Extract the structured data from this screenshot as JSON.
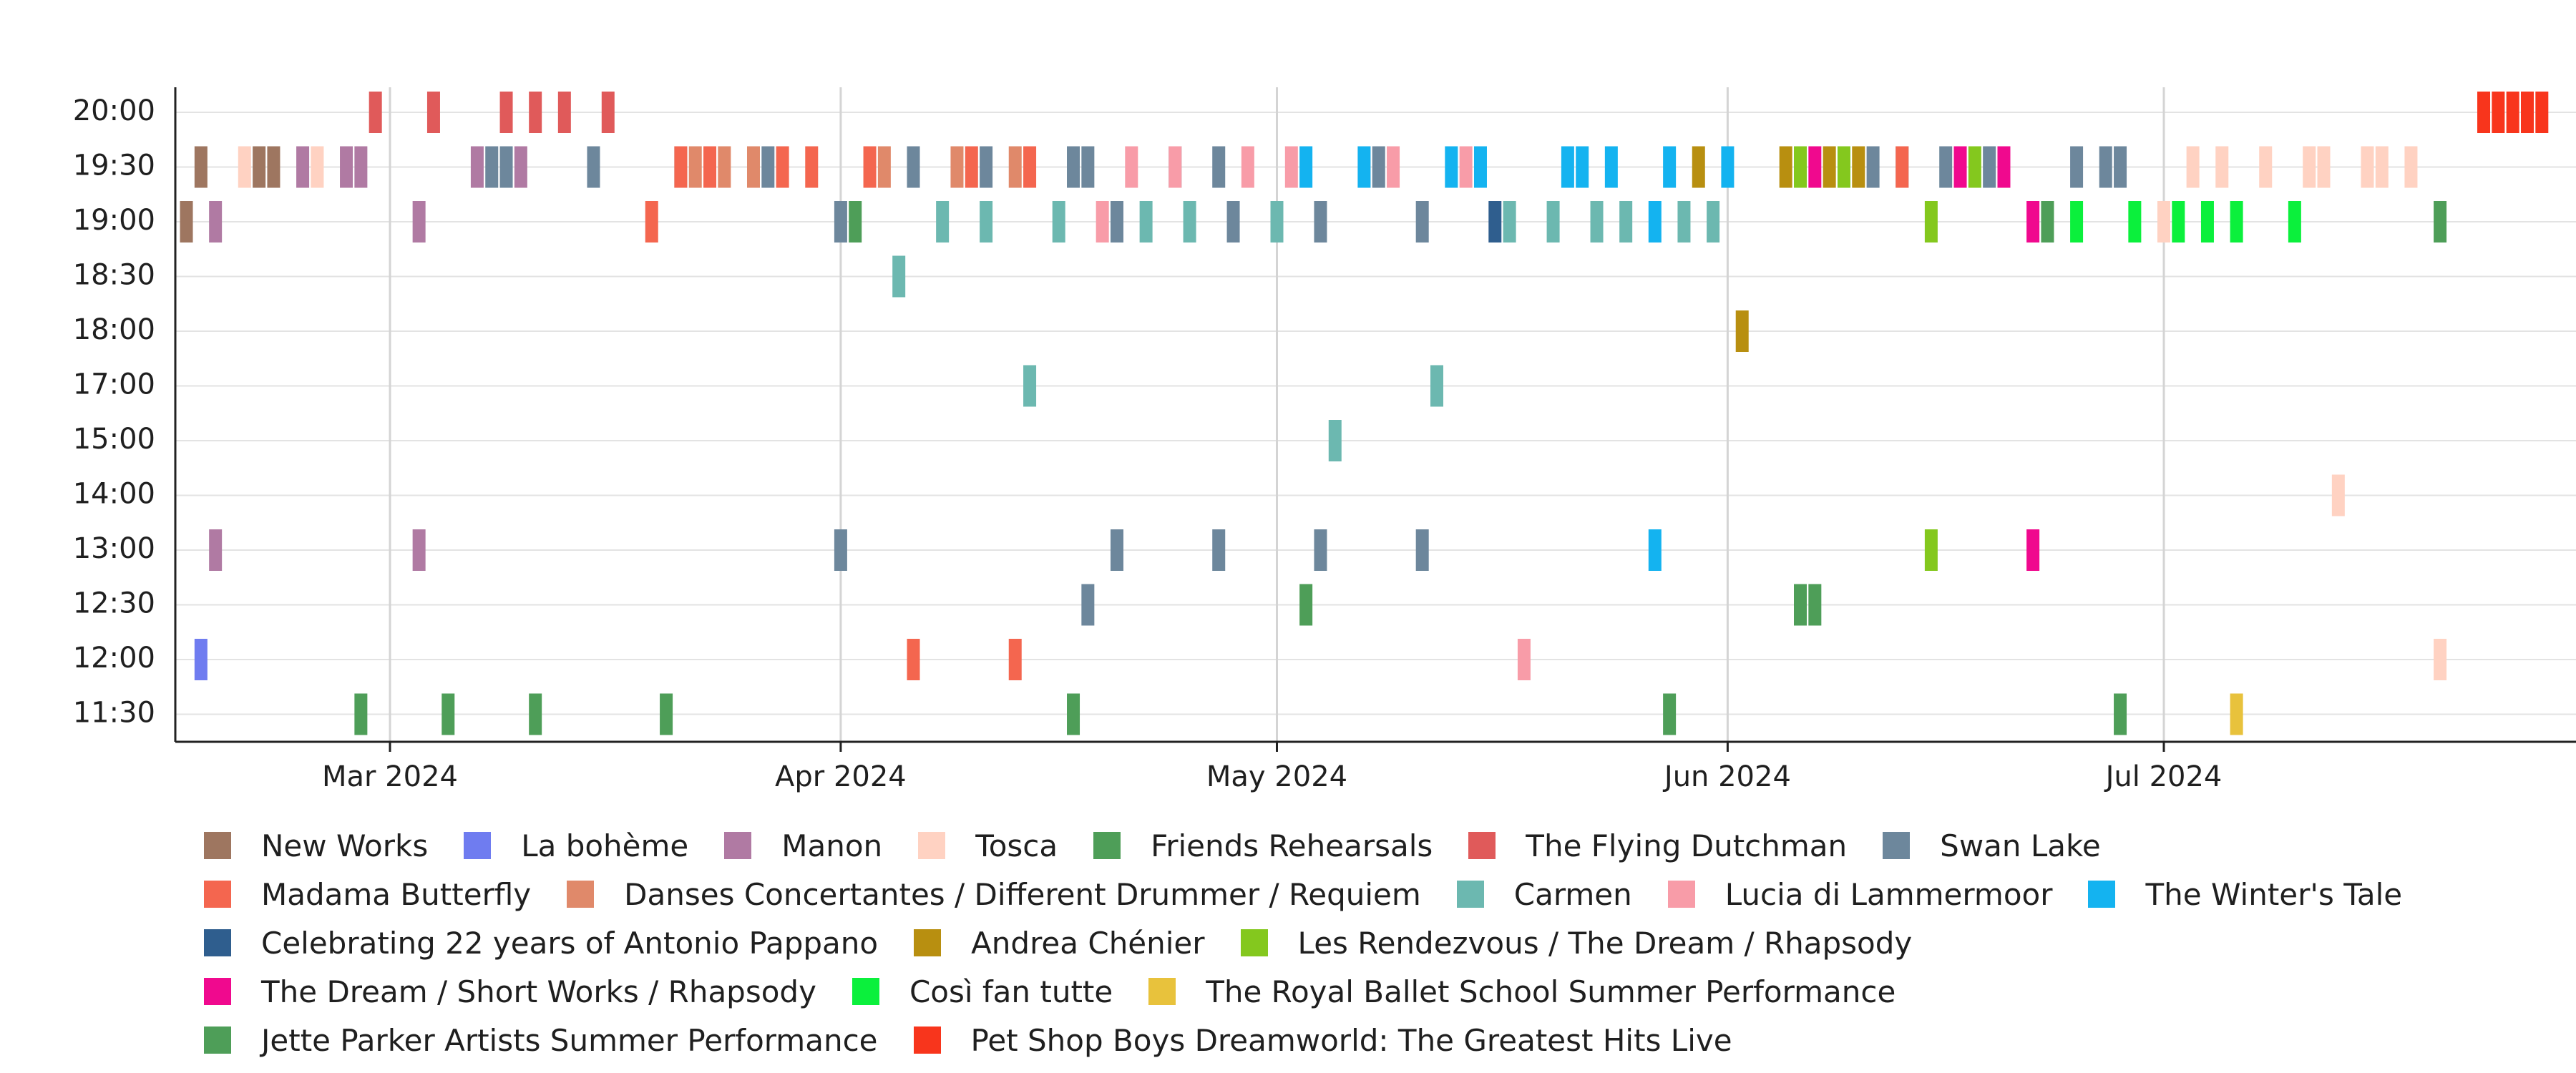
{
  "chart_data": {
    "type": "scatter",
    "marker": "vertical-bar",
    "xlabel": "",
    "ylabel": "",
    "x_range": [
      "2024-02-16",
      "2024-07-27"
    ],
    "x_ticks": [
      {
        "date": "2024-03-01",
        "label": "Mar 2024"
      },
      {
        "date": "2024-04-01",
        "label": "Apr 2024"
      },
      {
        "date": "2024-05-01",
        "label": "May 2024"
      },
      {
        "date": "2024-06-01",
        "label": "Jun 2024"
      },
      {
        "date": "2024-07-01",
        "label": "Jul 2024"
      }
    ],
    "y_categories": [
      "20:00",
      "19:30",
      "19:00",
      "18:30",
      "18:00",
      "17:00",
      "15:00",
      "14:00",
      "13:00",
      "12:30",
      "12:00",
      "11:30"
    ],
    "grid": true,
    "legend_position": "bottom",
    "series": [
      {
        "name": "New Works",
        "color": "#9e7660",
        "points": [
          [
            "2024-02-16",
            "19:00"
          ],
          [
            "2024-02-17",
            "19:30"
          ],
          [
            "2024-02-21",
            "19:30"
          ],
          [
            "2024-02-22",
            "19:30"
          ]
        ]
      },
      {
        "name": "La bohème",
        "color": "#6f7cf0",
        "points": [
          [
            "2024-02-17",
            "12:00"
          ]
        ]
      },
      {
        "name": "Manon",
        "color": "#b07aa3",
        "points": [
          [
            "2024-02-18",
            "19:00"
          ],
          [
            "2024-02-18",
            "13:00"
          ],
          [
            "2024-02-24",
            "19:30"
          ],
          [
            "2024-02-27",
            "19:30"
          ],
          [
            "2024-02-28",
            "19:30"
          ],
          [
            "2024-03-03",
            "19:00"
          ],
          [
            "2024-03-03",
            "13:00"
          ],
          [
            "2024-03-07",
            "19:30"
          ],
          [
            "2024-03-10",
            "19:30"
          ]
        ]
      },
      {
        "name": "Tosca",
        "color": "#ffd2c2",
        "points": [
          [
            "2024-02-20",
            "19:30"
          ],
          [
            "2024-02-25",
            "19:30"
          ],
          [
            "2024-07-03",
            "19:30"
          ],
          [
            "2024-07-05",
            "19:30"
          ],
          [
            "2024-07-08",
            "19:30"
          ],
          [
            "2024-07-11",
            "19:30"
          ],
          [
            "2024-07-12",
            "19:30"
          ],
          [
            "2024-07-13",
            "14:00"
          ],
          [
            "2024-07-15",
            "19:30"
          ],
          [
            "2024-07-16",
            "19:30"
          ],
          [
            "2024-07-18",
            "19:30"
          ],
          [
            "2024-07-20",
            "12:00"
          ],
          [
            "2024-07-01",
            "19:00"
          ]
        ]
      },
      {
        "name": "Friends Rehearsals",
        "color": "#4e9e58",
        "points": [
          [
            "2024-02-28",
            "11:30"
          ],
          [
            "2024-03-05",
            "11:30"
          ],
          [
            "2024-03-11",
            "11:30"
          ],
          [
            "2024-03-20",
            "11:30"
          ],
          [
            "2024-04-17",
            "11:30"
          ],
          [
            "2024-05-03",
            "12:30"
          ],
          [
            "2024-05-28",
            "11:30"
          ],
          [
            "2024-06-06",
            "12:30"
          ],
          [
            "2024-06-07",
            "12:30"
          ],
          [
            "2024-06-28",
            "11:30"
          ],
          [
            "2024-04-02",
            "19:00"
          ],
          [
            "2024-06-23",
            "19:00"
          ],
          [
            "2024-07-20",
            "19:00"
          ]
        ]
      },
      {
        "name": "The Flying Dutchman",
        "color": "#e05a5a",
        "points": [
          [
            "2024-02-29",
            "20:00"
          ],
          [
            "2024-03-04",
            "20:00"
          ],
          [
            "2024-03-09",
            "20:00"
          ],
          [
            "2024-03-11",
            "20:00"
          ],
          [
            "2024-03-13",
            "20:00"
          ],
          [
            "2024-03-16",
            "20:00"
          ]
        ]
      },
      {
        "name": "Swan Lake",
        "color": "#6d879c",
        "points": [
          [
            "2024-03-08",
            "19:30"
          ],
          [
            "2024-03-09",
            "19:30"
          ],
          [
            "2024-03-15",
            "19:30"
          ],
          [
            "2024-03-21",
            "19:30"
          ],
          [
            "2024-03-27",
            "19:30"
          ],
          [
            "2024-04-01",
            "19:00"
          ],
          [
            "2024-04-01",
            "13:00"
          ],
          [
            "2024-04-06",
            "19:30"
          ],
          [
            "2024-04-11",
            "19:30"
          ],
          [
            "2024-04-17",
            "19:30"
          ],
          [
            "2024-04-18",
            "19:30"
          ],
          [
            "2024-04-18",
            "12:30"
          ],
          [
            "2024-04-20",
            "19:00"
          ],
          [
            "2024-04-20",
            "13:00"
          ],
          [
            "2024-04-24",
            "19:30"
          ],
          [
            "2024-04-27",
            "19:30"
          ],
          [
            "2024-04-27",
            "13:00"
          ],
          [
            "2024-04-28",
            "19:00"
          ],
          [
            "2024-05-04",
            "19:00"
          ],
          [
            "2024-05-04",
            "13:00"
          ],
          [
            "2024-05-08",
            "19:30"
          ],
          [
            "2024-05-11",
            "19:00"
          ],
          [
            "2024-05-11",
            "13:00"
          ],
          [
            "2024-06-11",
            "19:30"
          ],
          [
            "2024-06-13",
            "19:30"
          ],
          [
            "2024-06-16",
            "19:30"
          ],
          [
            "2024-06-19",
            "19:30"
          ],
          [
            "2024-06-25",
            "19:30"
          ],
          [
            "2024-06-27",
            "19:30"
          ],
          [
            "2024-06-28",
            "19:30"
          ]
        ]
      },
      {
        "name": "Madama Butterfly",
        "color": "#f4664f",
        "points": [
          [
            "2024-03-19",
            "19:00"
          ],
          [
            "2024-03-21",
            "19:30"
          ],
          [
            "2024-03-23",
            "19:30"
          ],
          [
            "2024-03-28",
            "19:30"
          ],
          [
            "2024-03-30",
            "19:30"
          ],
          [
            "2024-04-03",
            "19:30"
          ],
          [
            "2024-04-06",
            "12:00"
          ],
          [
            "2024-04-10",
            "19:30"
          ],
          [
            "2024-04-13",
            "12:00"
          ],
          [
            "2024-04-14",
            "19:30"
          ],
          [
            "2024-06-13",
            "19:30"
          ]
        ]
      },
      {
        "name": "Danses Concertantes / Different Drummer / Requiem",
        "color": "#e0896a",
        "points": [
          [
            "2024-03-22",
            "19:30"
          ],
          [
            "2024-03-24",
            "19:30"
          ],
          [
            "2024-03-26",
            "19:30"
          ],
          [
            "2024-04-04",
            "19:30"
          ],
          [
            "2024-04-09",
            "19:30"
          ],
          [
            "2024-04-13",
            "19:30"
          ]
        ]
      },
      {
        "name": "Carmen",
        "color": "#6cb8b0",
        "points": [
          [
            "2024-04-05",
            "18:30"
          ],
          [
            "2024-04-08",
            "19:00"
          ],
          [
            "2024-04-11",
            "19:00"
          ],
          [
            "2024-04-14",
            "17:00"
          ],
          [
            "2024-04-16",
            "19:00"
          ],
          [
            "2024-04-22",
            "19:00"
          ],
          [
            "2024-04-25",
            "19:00"
          ],
          [
            "2024-05-01",
            "19:00"
          ],
          [
            "2024-05-05",
            "15:00"
          ],
          [
            "2024-05-12",
            "17:00"
          ],
          [
            "2024-05-17",
            "19:00"
          ],
          [
            "2024-05-20",
            "19:00"
          ],
          [
            "2024-05-23",
            "19:00"
          ],
          [
            "2024-05-25",
            "19:00"
          ],
          [
            "2024-05-29",
            "19:00"
          ],
          [
            "2024-05-31",
            "19:00"
          ]
        ]
      },
      {
        "name": "Lucia di Lammermoor",
        "color": "#f89ca8",
        "points": [
          [
            "2024-04-19",
            "19:00"
          ],
          [
            "2024-04-21",
            "19:30"
          ],
          [
            "2024-04-24",
            "19:30"
          ],
          [
            "2024-04-29",
            "19:30"
          ],
          [
            "2024-05-02",
            "19:30"
          ],
          [
            "2024-05-07",
            "19:30"
          ],
          [
            "2024-05-09",
            "19:30"
          ],
          [
            "2024-05-14",
            "19:30"
          ],
          [
            "2024-05-18",
            "12:00"
          ]
        ]
      },
      {
        "name": "The Winter's Tale",
        "color": "#14b3f0",
        "points": [
          [
            "2024-05-03",
            "19:30"
          ],
          [
            "2024-05-07",
            "19:30"
          ],
          [
            "2024-05-13",
            "19:30"
          ],
          [
            "2024-05-15",
            "19:30"
          ],
          [
            "2024-05-21",
            "19:30"
          ],
          [
            "2024-05-22",
            "19:30"
          ],
          [
            "2024-05-24",
            "19:30"
          ],
          [
            "2024-05-27",
            "19:00"
          ],
          [
            "2024-05-27",
            "13:00"
          ],
          [
            "2024-05-28",
            "19:30"
          ],
          [
            "2024-06-01",
            "19:30"
          ]
        ]
      },
      {
        "name": "Celebrating 22 years of Antonio Pappano",
        "color": "#2f5e8e",
        "points": [
          [
            "2024-05-16",
            "19:00"
          ]
        ]
      },
      {
        "name": "Andrea Chénier",
        "color": "#b88f10",
        "points": [
          [
            "2024-05-30",
            "19:30"
          ],
          [
            "2024-06-02",
            "18:00"
          ],
          [
            "2024-06-05",
            "19:30"
          ],
          [
            "2024-06-08",
            "19:30"
          ],
          [
            "2024-06-10",
            "19:30"
          ],
          [
            "2024-06-17",
            "19:30"
          ]
        ]
      },
      {
        "name": "Les Rendezvous / The Dream / Rhapsody",
        "color": "#84c81e",
        "points": [
          [
            "2024-06-06",
            "19:30"
          ],
          [
            "2024-06-09",
            "19:30"
          ],
          [
            "2024-06-15",
            "19:00"
          ],
          [
            "2024-06-15",
            "13:00"
          ],
          [
            "2024-06-18",
            "19:30"
          ]
        ]
      },
      {
        "name": "The Dream / Short Works / Rhapsody",
        "color": "#f0098e",
        "points": [
          [
            "2024-06-07",
            "19:30"
          ],
          [
            "2024-06-17",
            "19:30"
          ],
          [
            "2024-06-20",
            "19:30"
          ],
          [
            "2024-06-22",
            "19:00"
          ],
          [
            "2024-06-22",
            "13:00"
          ]
        ]
      },
      {
        "name": "Così fan tutte",
        "color": "#0bf03c",
        "points": [
          [
            "2024-06-25",
            "19:00"
          ],
          [
            "2024-06-29",
            "19:00"
          ],
          [
            "2024-07-02",
            "19:00"
          ],
          [
            "2024-07-04",
            "19:00"
          ],
          [
            "2024-07-06",
            "19:00"
          ],
          [
            "2024-07-10",
            "19:00"
          ]
        ]
      },
      {
        "name": "The Royal Ballet School Summer Performance",
        "color": "#e8c23c",
        "points": [
          [
            "2024-07-06",
            "11:30"
          ]
        ]
      },
      {
        "name": "Jette Parker Artists Summer Performance",
        "color": "#4e9e58",
        "points": []
      },
      {
        "name": "Pet Shop Boys Dreamworld: The Greatest Hits Live",
        "color": "#f8351c",
        "points": [
          [
            "2024-07-23",
            "20:00"
          ],
          [
            "2024-07-24",
            "20:00"
          ],
          [
            "2024-07-25",
            "20:00"
          ],
          [
            "2024-07-26",
            "20:00"
          ],
          [
            "2024-07-27",
            "20:00"
          ]
        ]
      }
    ]
  }
}
